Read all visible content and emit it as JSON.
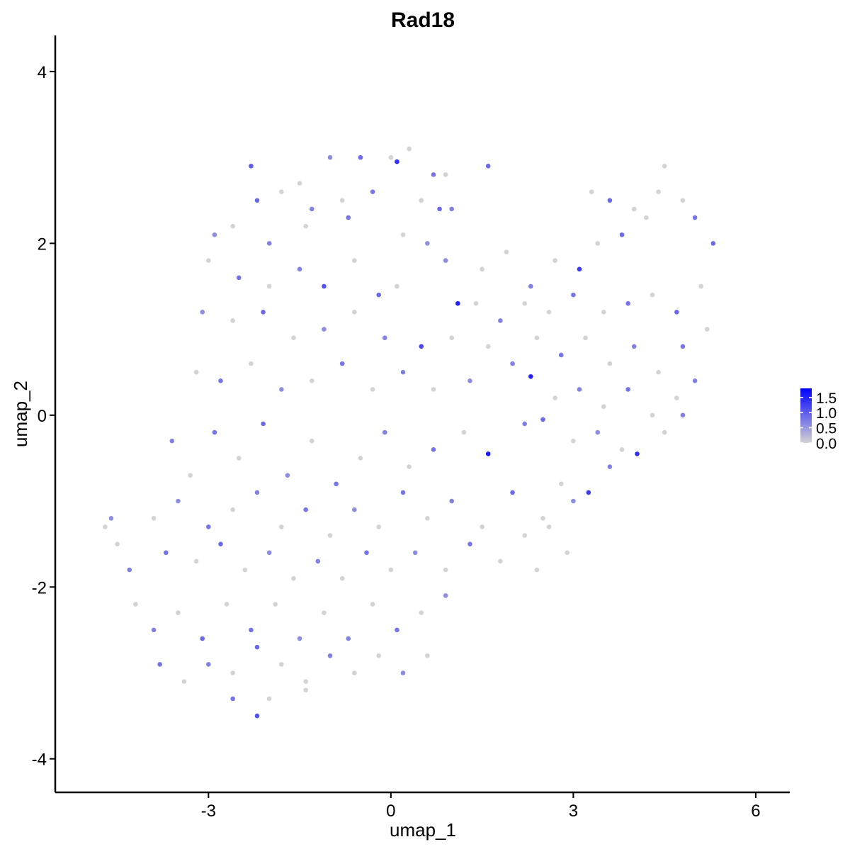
{
  "chart_data": {
    "type": "scatter",
    "title": "Rad18",
    "x_label": "umap_1",
    "y_label": "umap_2",
    "xlim": [
      -5.52,
      6.56
    ],
    "xticks": [
      -3,
      0,
      3,
      6
    ],
    "ylim": [
      -4.39,
      4.42
    ],
    "yticks": [
      -4,
      -2,
      0,
      2,
      4
    ],
    "color_low": "#d3d3d3",
    "color_high": "#0000ff",
    "color_lim": [
      0,
      1.8
    ],
    "legend_ticks": [
      {
        "value": 0,
        "label": "0.0"
      },
      {
        "value": 0.5,
        "label": "0.5"
      },
      {
        "value": 1,
        "label": "1.0"
      },
      {
        "value": 1.5,
        "label": "1.5"
      }
    ],
    "x": [
      -2.3,
      -1.5,
      -1.0,
      -0.5,
      0,
      0.1,
      0.3,
      0.7,
      0.9,
      1.6,
      -2.2,
      -1.8,
      -1.3,
      -0.8,
      -0.3,
      0.5,
      0.8,
      -2.9,
      -2.6,
      -2.0,
      -1.4,
      -0.7,
      0.2,
      0.6,
      1.0,
      -3.0,
      -2.5,
      -2.0,
      -1.5,
      -1.1,
      -0.6,
      -0.2,
      0.1,
      0.9,
      1.1,
      -3.1,
      -2.6,
      -2.1,
      -1.6,
      -1.1,
      -0.6,
      -0.1,
      0.5,
      1.0,
      -3.2,
      -2.8,
      -2.3,
      -1.8,
      -1.3,
      -0.8,
      -0.3,
      0.2,
      0.7,
      1.3,
      -3.6,
      -3.3,
      -2.9,
      -2.5,
      -2.1,
      -1.7,
      -1.3,
      -0.9,
      -0.5,
      -0.1,
      0.3,
      0.7,
      1.2,
      1.6,
      2.2,
      -3.9,
      -3.5,
      -3.0,
      -2.6,
      -2.2,
      -1.8,
      -1.4,
      -1.0,
      -0.6,
      -0.2,
      0.2,
      0.6,
      1.0,
      1.5,
      2.0,
      2.5,
      -4.6,
      -4.7,
      -4.5,
      -4.3,
      -3.7,
      -3.2,
      -2.8,
      -2.4,
      -2.0,
      -1.6,
      -1.2,
      -0.8,
      -0.4,
      0,
      0.4,
      0.9,
      1.3,
      1.8,
      2.2,
      -4.2,
      -3.9,
      -3.5,
      -3.1,
      -2.7,
      -2.3,
      -1.9,
      -1.5,
      -1.1,
      -0.7,
      -0.3,
      0.1,
      0.5,
      0.9,
      -3.8,
      -3.4,
      -3.0,
      -2.6,
      -2.2,
      -1.8,
      -1.4,
      -1.0,
      -0.6,
      -0.2,
      0.2,
      0.6,
      -2.6,
      -2.2,
      -2.0,
      -1.4,
      1.5,
      1.9,
      2.3,
      2.7,
      3.1,
      3.4,
      3.8,
      4.2,
      4.5,
      4.4,
      4.8,
      5.0,
      5.3,
      3.3,
      3.6,
      4.0,
      1.4,
      1.8,
      2.2,
      2.6,
      3.0,
      3.5,
      3.9,
      4.3,
      4.7,
      5.1,
      1.6,
      2.0,
      2.4,
      2.8,
      3.2,
      3.6,
      4.0,
      4.4,
      4.8,
      5.2,
      2.3,
      2.7,
      3.1,
      3.5,
      3.9,
      4.3,
      4.7,
      5.0,
      2.5,
      3.0,
      3.4,
      3.8,
      4.05,
      4.5,
      4.8,
      2.8,
      3.25,
      3.6,
      2.6,
      3.0,
      2.9,
      2.4
    ],
    "y": [
      2.9,
      2.7,
      3.0,
      3.0,
      3.0,
      2.95,
      3.1,
      2.8,
      2.8,
      2.9,
      2.5,
      2.6,
      2.4,
      2.5,
      2.6,
      2.5,
      2.4,
      2.1,
      2.2,
      2.0,
      2.2,
      2.3,
      2.1,
      2.0,
      2.4,
      1.8,
      1.6,
      1.5,
      1.7,
      1.5,
      1.8,
      1.4,
      1.5,
      1.8,
      1.3,
      1.2,
      1.1,
      1.2,
      0.9,
      1.0,
      1.2,
      0.9,
      0.8,
      0.9,
      0.5,
      0.4,
      0.6,
      0.3,
      0.4,
      0.6,
      0.3,
      0.5,
      0.3,
      0.4,
      -0.3,
      -0.7,
      -0.2,
      -0.5,
      -0.1,
      -0.7,
      -0.3,
      -0.8,
      -0.5,
      -0.2,
      -0.6,
      -0.4,
      -0.2,
      -0.45,
      -0.1,
      -1.2,
      -1.0,
      -1.3,
      -1.1,
      -0.9,
      -1.3,
      -1.1,
      -1.4,
      -1.1,
      -1.3,
      -0.9,
      -1.2,
      -1.0,
      -1.3,
      -0.9,
      -1.2,
      -1.2,
      -1.3,
      -1.5,
      -1.8,
      -1.6,
      -1.7,
      -1.5,
      -1.8,
      -1.6,
      -1.9,
      -1.7,
      -1.9,
      -1.6,
      -1.8,
      -1.6,
      -1.8,
      -1.5,
      -1.7,
      -1.4,
      -2.2,
      -2.5,
      -2.3,
      -2.6,
      -2.2,
      -2.5,
      -2.2,
      -2.6,
      -2.3,
      -2.6,
      -2.2,
      -2.5,
      -2.3,
      -2.1,
      -2.9,
      -3.1,
      -2.9,
      -3.0,
      -2.7,
      -2.9,
      -3.1,
      -2.8,
      -3.0,
      -2.8,
      -3.0,
      -2.8,
      -3.3,
      -3.5,
      -3.3,
      -3.2,
      1.7,
      1.9,
      1.5,
      1.8,
      1.7,
      2.0,
      2.1,
      2.3,
      2.9,
      2.6,
      2.5,
      2.3,
      2.0,
      2.6,
      2.5,
      2.4,
      1.3,
      1.1,
      1.3,
      1.2,
      1.4,
      1.2,
      1.3,
      1.4,
      1.2,
      1.5,
      0.8,
      0.6,
      0.9,
      0.7,
      0.9,
      0.6,
      0.8,
      0.5,
      0.8,
      1.0,
      0.45,
      0.2,
      0.3,
      0.1,
      0.3,
      0,
      0.2,
      0.4,
      -0.05,
      -0.3,
      -0.2,
      -0.4,
      -0.45,
      -0.2,
      0,
      -0.8,
      -0.9,
      -0.6,
      -1.3,
      -1.0,
      -1.6,
      -1.8
    ],
    "expression": [
      1.0,
      0,
      0.6,
      0.9,
      0,
      1.4,
      0,
      0.8,
      0,
      0.9,
      0.9,
      0,
      0.7,
      0,
      0.8,
      0,
      0.9,
      0.6,
      0,
      0.7,
      0,
      0.8,
      0,
      0.6,
      0.7,
      0,
      0.8,
      0,
      0.7,
      1.1,
      0,
      0.9,
      0,
      0.6,
      1.5,
      0.6,
      0,
      0.9,
      0,
      0.6,
      0,
      0.7,
      1.2,
      0,
      0,
      0.8,
      0,
      0.6,
      0,
      0.8,
      0,
      0.7,
      0,
      0.6,
      0.7,
      0,
      0.8,
      0,
      0.9,
      0.6,
      0,
      0.8,
      0,
      0.7,
      0,
      0.8,
      0,
      1.6,
      0.7,
      0,
      0.6,
      0.8,
      0,
      0.7,
      0,
      0.8,
      0,
      0.6,
      0,
      0.8,
      0,
      0.7,
      0,
      0.9,
      0,
      0.6,
      0,
      0,
      0.7,
      0.8,
      0,
      0.9,
      0,
      0.6,
      0,
      0.7,
      0,
      0.8,
      0,
      0.6,
      0,
      0.8,
      0,
      0,
      0,
      0.7,
      0,
      0.9,
      0,
      0.8,
      0,
      0.6,
      0,
      0.7,
      0,
      0.8,
      0,
      0.6,
      0.8,
      0,
      0.7,
      0,
      0.9,
      0,
      0,
      0.7,
      0,
      0,
      0.6,
      0,
      0.8,
      1.1,
      0,
      0,
      0,
      0,
      0.7,
      0,
      1.3,
      0,
      0.9,
      0,
      0,
      0,
      0,
      0.8,
      0.9,
      0,
      0.9,
      0,
      0,
      0.7,
      0,
      0,
      0.8,
      0,
      0.8,
      0,
      0.9,
      0,
      0,
      0.7,
      0,
      0.8,
      0,
      0,
      0.7,
      0,
      0.8,
      0,
      1.5,
      0,
      0.7,
      0,
      0.8,
      0,
      0,
      0.7,
      0.9,
      0,
      0.6,
      0,
      1.4,
      0,
      0.7,
      0,
      1.3,
      0.7,
      0,
      0.6,
      0,
      0
    ]
  }
}
